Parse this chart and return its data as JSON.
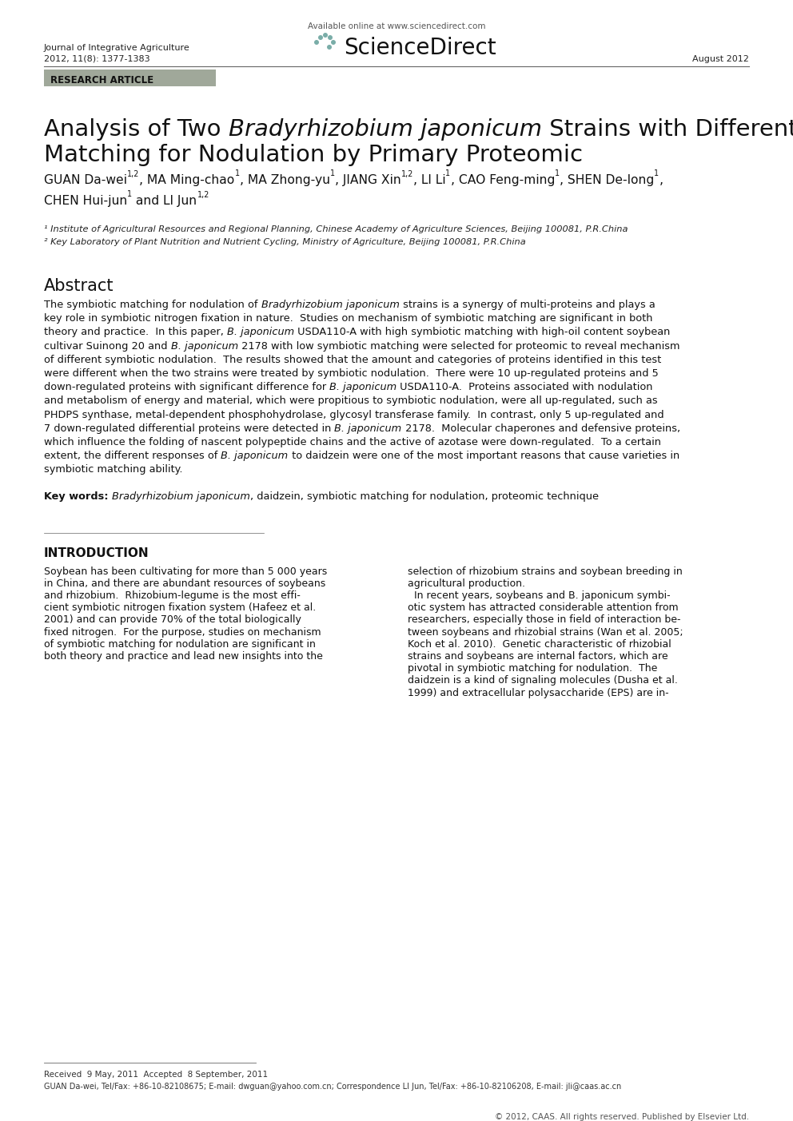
{
  "bg_color": "#ffffff",
  "available_online": "Available online at www.sciencedirect.com",
  "journal_name": "Journal of Integrative Agriculture",
  "journal_info": "2012, 11(8): 1377-1383",
  "date": "August 2012",
  "research_article_label": "RESEARCH ARTICLE",
  "research_article_bg": "#a0a89a",
  "sciencedirect_text": "ScienceDirect",
  "title_part1": "Analysis of Two ",
  "title_part2": "Bradyrhizobium japonicum",
  "title_part3": " Strains with Different Symbiotic",
  "title_line2": "Matching for Nodulation by Primary Proteomic",
  "authors_line1": [
    [
      "GUAN Da-wei",
      false,
      false
    ],
    [
      "1,2",
      false,
      true
    ],
    [
      ", MA Ming-chao",
      false,
      false
    ],
    [
      "1",
      false,
      true
    ],
    [
      ", MA Zhong-yu",
      false,
      false
    ],
    [
      "1",
      false,
      true
    ],
    [
      ", JIANG Xin",
      false,
      false
    ],
    [
      "1,2",
      false,
      true
    ],
    [
      ", LI Li",
      false,
      false
    ],
    [
      "1",
      false,
      true
    ],
    [
      ", CAO Feng-ming",
      false,
      false
    ],
    [
      "1",
      false,
      true
    ],
    [
      ", SHEN De-long",
      false,
      false
    ],
    [
      "1",
      false,
      true
    ],
    [
      ",",
      false,
      false
    ]
  ],
  "authors_line2": [
    [
      "CHEN Hui-jun",
      false,
      false
    ],
    [
      "1",
      false,
      true
    ],
    [
      " and LI Jun",
      false,
      false
    ],
    [
      "1,2",
      false,
      true
    ]
  ],
  "affil1": "¹ Institute of Agricultural Resources and Regional Planning, Chinese Academy of Agriculture Sciences, Beijing 100081, P.R.China",
  "affil2": "² Key Laboratory of Plant Nutrition and Nutrient Cycling, Ministry of Agriculture, Beijing 100081, P.R.China",
  "abstract_title": "Abstract",
  "abstract_lines": [
    [
      [
        "The symbiotic matching for nodulation of ",
        false
      ],
      [
        "Bradyrhizobium japonicum",
        true
      ],
      [
        " strains is a synergy of multi-proteins and plays a",
        false
      ]
    ],
    [
      [
        "key role in symbiotic nitrogen fixation in nature.  Studies on mechanism of symbiotic matching are significant in both",
        false
      ]
    ],
    [
      [
        "theory and practice.  In this paper, ",
        false
      ],
      [
        "B. japonicum",
        true
      ],
      [
        " USDA110-A with high symbiotic matching with high-oil content soybean",
        false
      ]
    ],
    [
      [
        "cultivar Suinong 20 and ",
        false
      ],
      [
        "B. japonicum",
        true
      ],
      [
        " 2178 with low symbiotic matching were selected for proteomic to reveal mechanism",
        false
      ]
    ],
    [
      [
        "of different symbiotic nodulation.  The results showed that the amount and categories of proteins identified in this test",
        false
      ]
    ],
    [
      [
        "were different when the two strains were treated by symbiotic nodulation.  There were 10 up-regulated proteins and 5",
        false
      ]
    ],
    [
      [
        "down-regulated proteins with significant difference for ",
        false
      ],
      [
        "B. japonicum",
        true
      ],
      [
        " USDA110-A.  Proteins associated with nodulation",
        false
      ]
    ],
    [
      [
        "and metabolism of energy and material, which were propitious to symbiotic nodulation, were all up-regulated, such as",
        false
      ]
    ],
    [
      [
        "PHDPS synthase, metal-dependent phosphohydrolase, glycosyl transferase family.  In contrast, only 5 up-regulated and",
        false
      ]
    ],
    [
      [
        "7 down-regulated differential proteins were detected in ",
        false
      ],
      [
        "B. japonicum",
        true
      ],
      [
        " 2178.  Molecular chaperones and defensive proteins,",
        false
      ]
    ],
    [
      [
        "which influence the folding of nascent polypeptide chains and the active of azotase were down-regulated.  To a certain",
        false
      ]
    ],
    [
      [
        "extent, the different responses of ",
        false
      ],
      [
        "B. japonicum",
        true
      ],
      [
        " to daidzein were one of the most important reasons that cause varieties in",
        false
      ]
    ],
    [
      [
        "symbiotic matching ability.",
        false
      ]
    ]
  ],
  "kw_bold": "Key words: ",
  "kw_italic": "Bradyrhizobium japonicum",
  "kw_rest": ", daidzein, symbiotic matching for nodulation, proteomic technique",
  "intro_title": "INTRODUCTION",
  "intro_col1_lines": [
    "Soybean has been cultivating for more than 5 000 years",
    "in China, and there are abundant resources of soybeans",
    "and rhizobium.  Rhizobium-legume is the most effi-",
    "cient symbiotic nitrogen fixation system (Hafeez et al.",
    "2001) and can provide 70% of the total biologically",
    "fixed nitrogen.  For the purpose, studies on mechanism",
    "of symbiotic matching for nodulation are significant in",
    "both theory and practice and lead new insights into the"
  ],
  "intro_col2_lines": [
    "selection of rhizobium strains and soybean breeding in",
    "agricultural production.",
    "  In recent years, soybeans and B. japonicum symbi-",
    "otic system has attracted considerable attention from",
    "researchers, especially those in field of interaction be-",
    "tween soybeans and rhizobial strains (Wan et al. 2005;",
    "Koch et al. 2010).  Genetic characteristic of rhizobial",
    "strains and soybeans are internal factors, which are",
    "pivotal in symbiotic matching for nodulation.  The",
    "daidzein is a kind of signaling molecules (Dusha et al.",
    "1999) and extracellular polysaccharide (EPS) are in-"
  ],
  "footer_line1": "Received  9 May, 2011  Accepted  8 September, 2011",
  "footer_line2": "GUAN Da-wei, Tel/Fax: +86-10-82108675; E-mail: dwguan@yahoo.com.cn; Correspondence LI Jun, Tel/Fax: +86-10-82106208, E-mail: jli@caas.ac.cn",
  "copyright": "© 2012, CAAS. All rights reserved. Published by Elsevier Ltd."
}
